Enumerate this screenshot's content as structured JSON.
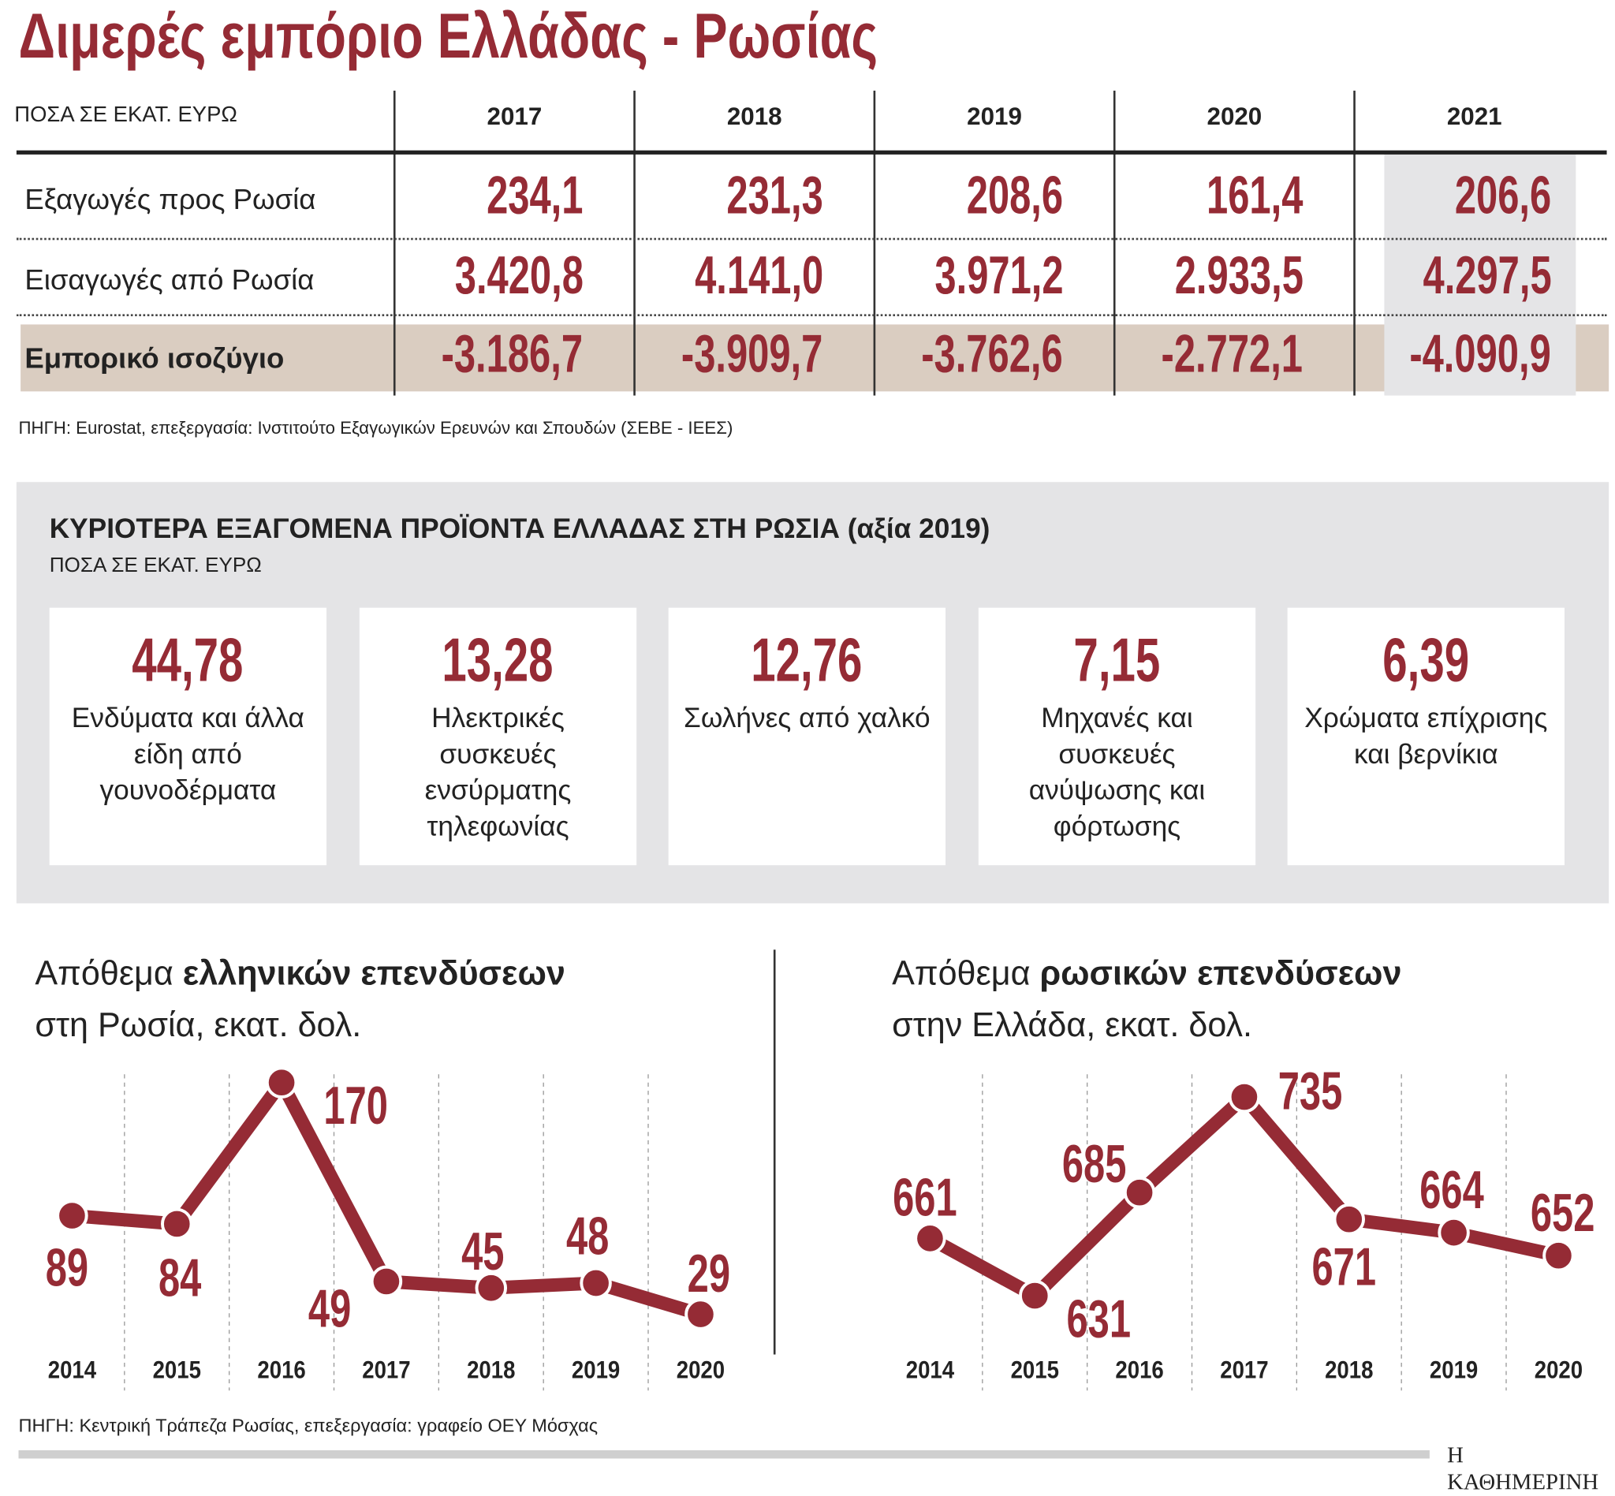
{
  "title": "Διμερές εμπόριο Ελλάδας - Ρωσίας",
  "trade_table": {
    "unit_label": "ΠΟΣΑ ΣΕ ΕΚΑΤ. ΕΥΡΩ",
    "years": [
      "2017",
      "2018",
      "2019",
      "2020",
      "2021"
    ],
    "rows": [
      {
        "label": "Εξαγωγές προς Ρωσία",
        "values": [
          "234,1",
          "231,3",
          "208,6",
          "161,4",
          "206,6"
        ]
      },
      {
        "label": "Εισαγωγές από Ρωσία",
        "values": [
          "3.420,8",
          "4.141,0",
          "3.971,2",
          "2.933,5",
          "4.297,5"
        ]
      },
      {
        "label": "Εμπορικό ισοζύγιο",
        "values": [
          "-3.186,7",
          "-3.909,7",
          "-3.762,6",
          "-2.772,1",
          "-4.090,9"
        ]
      }
    ],
    "source": "ΠΗΓΗ: Eurostat, επεξεργασία: Ινστιτούτο Εξαγωγικών Ερευνών και Σπουδών (ΣΕΒΕ - ΙΕΕΣ)"
  },
  "products": {
    "heading": "ΚΥΡΙΟΤΕΡΑ ΕΞΑΓΟΜΕΝΑ ΠΡΟΪΟΝΤΑ ΕΛΛΑΔΑΣ ΣΤΗ ΡΩΣΙΑ (αξία 2019)",
    "unit_label": "ΠΟΣΑ ΣΕ ΕΚΑΤ. ΕΥΡΩ",
    "items": [
      {
        "value": "44,78",
        "label": "Ενδύματα και άλλα είδη από γουνοδέρματα"
      },
      {
        "value": "13,28",
        "label": "Ηλεκτρικές συσκευές ενσύρματης τηλεφωνίας"
      },
      {
        "value": "12,76",
        "label": "Σωλήνες από χαλκό"
      },
      {
        "value": "7,15",
        "label": "Μηχανές και συσκευές ανύψωσης και φόρτωσης"
      },
      {
        "value": "6,39",
        "label": "Χρώματα επίχρισης και βερνίκια"
      }
    ]
  },
  "chart_data": [
    {
      "type": "line",
      "title_regular": "Απόθεμα ",
      "title_bold": "ελληνικών επενδύσεων",
      "subtitle": "στη Ρωσία, εκατ. δολ.",
      "categories": [
        "2014",
        "2015",
        "2016",
        "2017",
        "2018",
        "2019",
        "2020"
      ],
      "values": [
        89,
        84,
        170,
        49,
        45,
        48,
        29
      ],
      "grid": "vertical-dashed",
      "color": "#952b35"
    },
    {
      "type": "line",
      "title_regular": "Απόθεμα ",
      "title_bold": "ρωσικών επενδύσεων",
      "subtitle": "στην Ελλάδα, εκατ. δολ.",
      "categories": [
        "2014",
        "2015",
        "2016",
        "2017",
        "2018",
        "2019",
        "2020"
      ],
      "values": [
        661,
        631,
        685,
        735,
        671,
        664,
        652
      ],
      "grid": "vertical-dashed",
      "color": "#952b35"
    }
  ],
  "footer": {
    "source": "ΠΗΓΗ: Κεντρική Τράπεζα Ρωσίας, επεξεργασία: γραφείο ΟΕΥ Μόσχας",
    "brand": "Η ΚΑΘΗΜΕΡΙΝΗ"
  }
}
